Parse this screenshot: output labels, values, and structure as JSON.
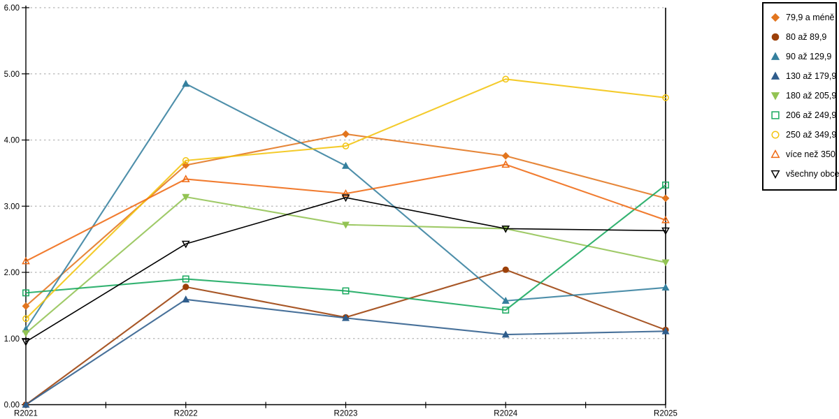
{
  "chart_data": {
    "type": "line",
    "title": "",
    "xlabel": "",
    "ylabel": "",
    "categories": [
      "R2021",
      "R2022",
      "R2023",
      "R2024",
      "R2025"
    ],
    "ylim": [
      0,
      6
    ],
    "ytick_step": 1,
    "ytick_labels": [
      "0.00",
      "1.00",
      "2.00",
      "3.00",
      "4.00",
      "5.00",
      "6.00"
    ],
    "grid": "horizontal-dotted",
    "gridline_color": "#b5b5b5",
    "axis_color": "#000000",
    "legend_position": "top-right",
    "series": [
      {
        "name": "79,9 a méně",
        "color": "#E2751E",
        "marker": "diamond",
        "fill": "filled",
        "values": [
          1.49,
          3.62,
          4.09,
          3.76,
          3.12
        ]
      },
      {
        "name": "80 až 89,9",
        "color": "#9C4009",
        "marker": "circle",
        "fill": "filled",
        "values": [
          0.0,
          1.78,
          1.32,
          2.04,
          1.13
        ]
      },
      {
        "name": "90 až 129,9",
        "color": "#35809E",
        "marker": "triangle-up",
        "fill": "filled",
        "values": [
          1.14,
          4.85,
          3.61,
          1.57,
          1.77
        ]
      },
      {
        "name": "130 až 179,9",
        "color": "#2F5D8C",
        "marker": "triangle-up",
        "fill": "filled",
        "values": [
          0.0,
          1.59,
          1.31,
          1.06,
          1.11
        ]
      },
      {
        "name": "180 až 205,9",
        "color": "#92C353",
        "marker": "triangle-down",
        "fill": "filled",
        "values": [
          1.08,
          3.14,
          2.72,
          2.66,
          2.15
        ]
      },
      {
        "name": "206 až 249,9",
        "color": "#18A85E",
        "marker": "square",
        "fill": "open",
        "values": [
          1.69,
          1.9,
          1.72,
          1.43,
          3.32
        ]
      },
      {
        "name": "250 až 349,9",
        "color": "#F2C40F",
        "marker": "circle",
        "fill": "open",
        "values": [
          1.3,
          3.69,
          3.91,
          4.92,
          4.64
        ]
      },
      {
        "name": "více než 350",
        "color": "#EF6A13",
        "marker": "triangle-up",
        "fill": "open",
        "values": [
          2.17,
          3.41,
          3.19,
          3.63,
          2.79
        ]
      },
      {
        "name": "všechny obce",
        "color": "#000000",
        "marker": "triangle-down",
        "fill": "open",
        "values": [
          0.95,
          2.43,
          3.13,
          2.66,
          2.63
        ]
      }
    ]
  }
}
